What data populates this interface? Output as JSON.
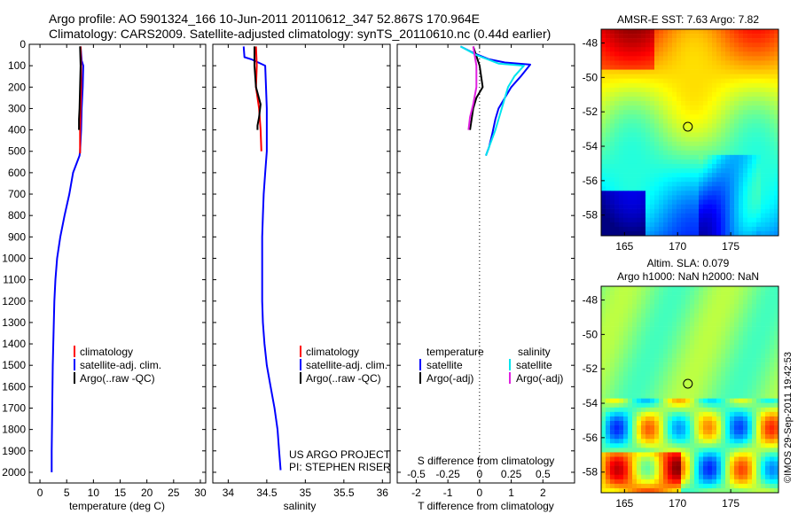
{
  "header": {
    "line1": "Argo profile: AO 5901324_166 10-Jun-2011 20110612_347 52.867S 170.964E",
    "line2": "Climatology: CARS2009. Satellite-adjusted climatology: synTS_20110610.nc (0.44d earlier)"
  },
  "colors": {
    "climatology": "#ff0000",
    "satellite": "#0000ff",
    "argo": "#000000",
    "satellite_salinity": "#00e5ee",
    "argo_salinity": "#e020e0"
  },
  "chart_data": [
    {
      "type": "line",
      "xlabel": "temperature (deg C)",
      "xlim": [
        -2,
        31
      ],
      "xticks": [
        0,
        5,
        10,
        15,
        20,
        25,
        30
      ],
      "ylim": [
        0,
        2050
      ],
      "yticks": [
        0,
        100,
        200,
        300,
        400,
        500,
        600,
        700,
        800,
        900,
        1000,
        1100,
        1200,
        1300,
        1400,
        1500,
        1600,
        1700,
        1800,
        1900,
        2000
      ],
      "y_reversed": true,
      "legend": [
        "climatology",
        "satellite-adj. clim.",
        "Argo(..raw -QC)"
      ],
      "series": [
        {
          "name": "satellite-adj. clim.",
          "color_key": "satellite",
          "x": [
            7.6,
            7.8,
            8.1,
            8.0,
            7.8,
            7.7,
            7.5,
            7.4,
            6.2,
            5.5,
            4.6,
            3.8,
            3.2,
            2.9,
            2.7,
            2.6,
            2.5,
            2.4,
            2.3,
            2.2,
            2.2
          ],
          "y": [
            10,
            75,
            100,
            200,
            300,
            400,
            500,
            520,
            600,
            700,
            800,
            900,
            1000,
            1100,
            1200,
            1300,
            1400,
            1500,
            1700,
            1900,
            2000
          ]
        },
        {
          "name": "climatology",
          "color_key": "climatology",
          "x": [
            7.6,
            7.7,
            7.7,
            7.6,
            7.5,
            7.5
          ],
          "y": [
            10,
            100,
            200,
            300,
            400,
            510
          ]
        },
        {
          "name": "Argo(..raw -QC)",
          "color_key": "argo",
          "x": [
            7.5,
            7.6,
            7.5,
            7.4,
            7.3,
            7.3
          ],
          "y": [
            10,
            100,
            200,
            300,
            350,
            400
          ]
        }
      ]
    },
    {
      "type": "line",
      "xlabel": "salinity",
      "xlim": [
        33.8,
        36.1
      ],
      "xticks": [
        34,
        34.5,
        35,
        35.5,
        36
      ],
      "ylim": [
        0,
        2050
      ],
      "y_reversed": true,
      "legend": [
        "climatology",
        "satellite-adj. clim.",
        "Argo(..raw -QC)"
      ],
      "annotation": [
        "US ARGO PROJECT",
        "PI: STEPHEN RISER"
      ],
      "series": [
        {
          "name": "satellite-adj. clim.",
          "color_key": "satellite",
          "x": [
            34.2,
            34.21,
            34.3,
            34.48,
            34.5,
            34.5,
            34.48,
            34.46,
            34.45,
            34.44,
            34.44,
            34.44,
            34.44,
            34.45,
            34.47,
            34.5,
            34.55,
            34.6,
            34.64,
            34.66,
            34.68
          ],
          "y": [
            10,
            60,
            70,
            100,
            300,
            500,
            600,
            700,
            800,
            900,
            1000,
            1100,
            1200,
            1300,
            1400,
            1500,
            1600,
            1700,
            1800,
            1900,
            1990
          ]
        },
        {
          "name": "climatology",
          "color_key": "climatology",
          "x": [
            34.36,
            34.37,
            34.36,
            34.4,
            34.42,
            34.43
          ],
          "y": [
            10,
            100,
            200,
            300,
            400,
            500
          ]
        },
        {
          "name": "Argo(..raw -QC)",
          "color_key": "argo",
          "x": [
            34.34,
            34.34,
            34.36,
            34.42,
            34.4,
            34.38,
            34.38
          ],
          "y": [
            10,
            100,
            200,
            280,
            340,
            380,
            400
          ]
        }
      ]
    },
    {
      "type": "line",
      "xlabel_bottom": "T difference from climatology",
      "xlim_T": [
        -2.6,
        3.0
      ],
      "xticks_T": [
        -2,
        -1,
        0,
        1,
        2
      ],
      "xlabel_top": "S difference from climatology",
      "xticks_S": [
        -0.5,
        -0.25,
        0,
        0.25,
        0.5
      ],
      "ylim": [
        0,
        2050
      ],
      "y_reversed": true,
      "legend_titles": [
        "temperature",
        "salinity"
      ],
      "legend": [
        "satellite",
        "Argo(-adj)",
        "satellite",
        "Argo(-adj)"
      ],
      "series": [
        {
          "name": "satellite",
          "group": "temperature",
          "color_key": "satellite",
          "x": [
            -0.6,
            -0.2,
            0.3,
            0.8,
            1.6,
            1.3,
            1.0,
            0.8,
            0.6,
            0.5,
            0.4,
            0.3,
            0.2
          ],
          "y": [
            10,
            40,
            70,
            85,
            95,
            150,
            200,
            250,
            300,
            350,
            420,
            480,
            520
          ]
        },
        {
          "name": "Argo(-adj)",
          "group": "temperature",
          "color_key": "argo",
          "x": [
            -0.2,
            0.0,
            0.1,
            -0.1,
            -0.2,
            -0.25,
            -0.3
          ],
          "y": [
            10,
            100,
            200,
            250,
            300,
            350,
            400
          ]
        },
        {
          "name": "satellite",
          "group": "salinity",
          "color_key": "satellite_salinity",
          "x": [
            -0.6,
            -0.1,
            0.6,
            1.4,
            1.1,
            0.9,
            0.7,
            0.5,
            0.3,
            0.2
          ],
          "y": [
            10,
            50,
            90,
            100,
            150,
            200,
            300,
            400,
            480,
            520
          ]
        },
        {
          "name": "Argo(-adj)",
          "group": "salinity",
          "color_key": "argo_salinity",
          "x": [
            -0.2,
            -0.1,
            -0.1,
            -0.2,
            -0.3,
            -0.35
          ],
          "y": [
            10,
            100,
            200,
            280,
            340,
            400
          ]
        }
      ]
    },
    {
      "type": "heatmap",
      "title": "AMSR-E SST: 7.63  Argo: 7.82",
      "xticks": [
        165,
        170,
        175
      ],
      "yticks": [
        -48,
        -50,
        -52,
        -54,
        -56,
        -58
      ],
      "xlim": [
        162.8,
        179.5
      ],
      "ylim": [
        -59.2,
        -47.2
      ],
      "marker": {
        "lon": 170.964,
        "lat": -52.867
      }
    },
    {
      "type": "heatmap",
      "title_line1": "Altim. SLA: 0.079",
      "title_line2": "Argo h1000: NaN  h2000: NaN",
      "xticks": [
        165,
        170,
        175
      ],
      "yticks": [
        -48,
        -50,
        -52,
        -54,
        -56,
        -58
      ],
      "xlim": [
        162.8,
        179.5
      ],
      "ylim": [
        -59.2,
        -47.2
      ],
      "marker": {
        "lon": 170.964,
        "lat": -52.867
      }
    }
  ],
  "footer": {
    "stamp": "©IMOS 29-Sep-2011 19:42:53"
  }
}
